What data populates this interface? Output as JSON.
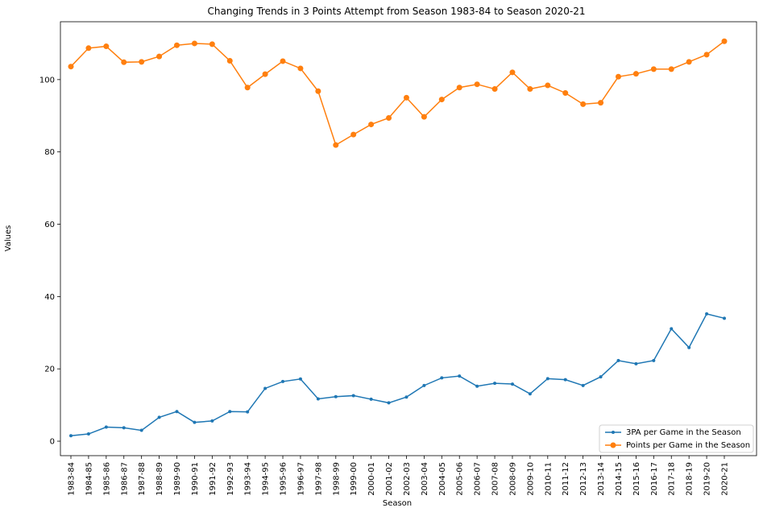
{
  "chart_data": {
    "type": "line",
    "title": "Changing Trends in 3 Points Attempt from Season 1983-84 to Season 2020-21",
    "xlabel": "Season",
    "ylabel": "Values",
    "ylim": [
      -4,
      116
    ],
    "yticks": [
      0,
      20,
      40,
      60,
      80,
      100
    ],
    "grid": false,
    "legend_position": "bottom-right",
    "categories": [
      "1983-84",
      "1984-85",
      "1985-86",
      "1986-87",
      "1987-88",
      "1988-89",
      "1989-90",
      "1990-91",
      "1991-92",
      "1992-93",
      "1993-94",
      "1994-95",
      "1995-96",
      "1996-97",
      "1997-98",
      "1998-99",
      "1999-00",
      "2000-01",
      "2001-02",
      "2002-03",
      "2003-04",
      "2004-05",
      "2005-06",
      "2006-07",
      "2007-08",
      "2008-09",
      "2009-10",
      "2010-11",
      "2011-12",
      "2012-13",
      "2013-14",
      "2014-15",
      "2015-16",
      "2016-17",
      "2017-18",
      "2018-19",
      "2019-20",
      "2020-21"
    ],
    "series": [
      {
        "name": "3PA per Game in the Season",
        "color": "#1f77b4",
        "marker": "small-dot",
        "values": [
          1.5,
          2.0,
          3.9,
          3.7,
          3.0,
          6.6,
          8.2,
          5.2,
          5.6,
          8.2,
          8.1,
          14.6,
          16.5,
          17.2,
          11.7,
          12.3,
          12.6,
          11.6,
          10.6,
          12.2,
          15.4,
          17.5,
          18.0,
          15.2,
          16.0,
          15.8,
          13.1,
          17.3,
          17.0,
          15.4,
          17.8,
          22.3,
          21.4,
          22.3,
          31.1,
          25.9,
          35.2,
          34.0
        ]
      },
      {
        "name": "Points per Game in the Season",
        "color": "#ff7f0e",
        "marker": "dot",
        "values": [
          103.6,
          108.7,
          109.2,
          104.8,
          104.9,
          106.4,
          109.5,
          110.0,
          109.8,
          105.2,
          97.8,
          101.5,
          105.1,
          103.1,
          96.8,
          81.9,
          84.8,
          87.6,
          89.4,
          95.0,
          89.7,
          94.5,
          97.8,
          98.7,
          97.4,
          102.0,
          97.4,
          98.4,
          96.3,
          93.2,
          93.6,
          100.8,
          101.6,
          102.9,
          102.9,
          104.9,
          106.9,
          110.6
        ]
      }
    ]
  }
}
